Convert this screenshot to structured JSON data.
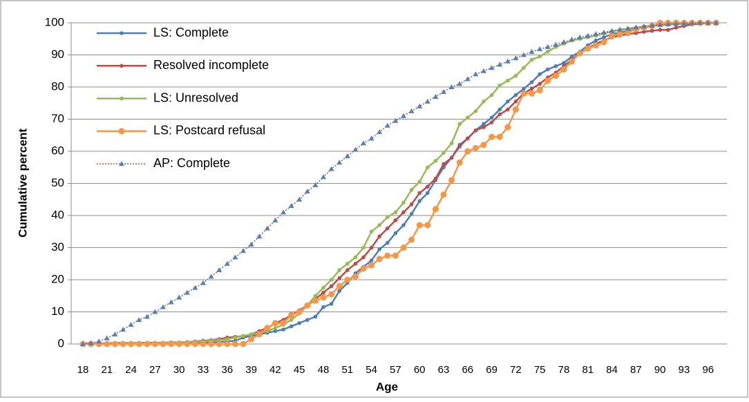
{
  "chart_data": {
    "type": "line",
    "x_label": "Age",
    "y_label": "Cumulative percent",
    "categories": [
      18,
      null,
      null,
      21,
      null,
      null,
      24,
      null,
      null,
      27,
      null,
      null,
      30,
      null,
      null,
      33,
      null,
      null,
      36,
      null,
      null,
      39,
      null,
      null,
      42,
      null,
      null,
      45,
      null,
      null,
      48,
      null,
      null,
      51,
      null,
      null,
      54,
      null,
      null,
      57,
      null,
      null,
      60,
      null,
      null,
      63,
      null,
      null,
      66,
      null,
      null,
      69,
      null,
      null,
      72,
      null,
      null,
      75,
      null,
      null,
      78,
      null,
      null,
      81,
      null,
      null,
      84,
      null,
      null,
      87,
      null,
      null,
      90,
      null,
      null,
      93,
      null,
      null,
      96,
      null
    ],
    "ylim": [
      0,
      100
    ],
    "yticks": [
      0,
      10,
      20,
      30,
      40,
      50,
      60,
      70,
      80,
      90,
      100
    ],
    "grid": true,
    "legend": "top-left",
    "series": [
      {
        "name": "LS: Complete",
        "color": "#4a7ebb",
        "marker": "circle",
        "line_style": "solid",
        "values": [
          0,
          0,
          0,
          0,
          0,
          0,
          0,
          0,
          0,
          0,
          0,
          0,
          0,
          0.2,
          0.3,
          0.4,
          0.5,
          0.6,
          0.8,
          1,
          2,
          2.5,
          3,
          3.5,
          4,
          4.5,
          5.5,
          6.5,
          7.5,
          8.5,
          11.5,
          12.5,
          16.5,
          19,
          22,
          24,
          26,
          29.5,
          31.5,
          34.5,
          37,
          40.5,
          44.5,
          47,
          51,
          55,
          58,
          62,
          64,
          66.5,
          68.5,
          70.5,
          73,
          75.5,
          77.5,
          79.5,
          81.5,
          84,
          85.5,
          86.5,
          87.5,
          89.5,
          91,
          93,
          94.5,
          95.5,
          96.5,
          97,
          97.5,
          98,
          98.5,
          99,
          99.2,
          99.4,
          99.6,
          99.7,
          99.8,
          99.9,
          100,
          100
        ]
      },
      {
        "name": "Resolved incomplete",
        "color": "#be4b48",
        "marker": "circle",
        "line_style": "solid",
        "values": [
          0.2,
          0.2,
          0.2,
          0.2,
          0.3,
          0.3,
          0.3,
          0.3,
          0.4,
          0.4,
          0.4,
          0.5,
          0.5,
          0.6,
          0.8,
          1,
          1.2,
          1.5,
          2,
          2.2,
          2.5,
          3,
          4,
          5,
          6.5,
          7.5,
          9,
          10.5,
          12,
          14,
          16,
          18,
          20.5,
          23,
          25,
          27,
          30,
          33.5,
          36,
          38.5,
          41,
          43.5,
          47,
          49,
          51.5,
          56,
          58,
          61.5,
          64,
          66.5,
          67.5,
          69,
          71.5,
          73,
          75.5,
          78,
          79.5,
          81,
          83,
          84.5,
          86.5,
          88.5,
          90.5,
          92,
          93.5,
          94.5,
          95.5,
          96,
          96.5,
          96.8,
          97.2,
          97.5,
          97.8,
          97.8,
          98.5,
          99,
          99.5,
          99.7,
          100,
          100
        ]
      },
      {
        "name": "LS: Unresolved",
        "color": "#98b954",
        "marker": "circle",
        "line_style": "solid",
        "values": [
          0,
          0,
          0,
          0,
          0,
          0.1,
          0.1,
          0.2,
          0.2,
          0.3,
          0.3,
          0.4,
          0.5,
          0.6,
          0.7,
          0.8,
          1,
          1.2,
          1.5,
          2,
          2.5,
          3,
          3.5,
          4,
          5,
          6,
          7.5,
          9.5,
          12,
          15,
          17.5,
          20,
          23,
          25,
          27,
          30,
          35,
          37,
          39.5,
          41,
          44,
          48,
          50.5,
          55,
          57,
          59.5,
          62.5,
          68.5,
          70.5,
          72.5,
          75.5,
          77.5,
          80.5,
          82,
          83.5,
          86,
          88.5,
          89.5,
          91,
          92.5,
          93.5,
          94.5,
          95,
          95.5,
          96,
          96.7,
          97.3,
          97.8,
          98.2,
          98.5,
          98.8,
          99,
          99.3,
          99.5,
          99.7,
          99.8,
          100,
          100,
          100,
          100
        ]
      },
      {
        "name": "LS: Postcard refusal",
        "color": "#f79646",
        "marker": "large-circle",
        "line_style": "solid",
        "values": [
          0,
          0,
          0,
          0,
          0,
          0,
          0,
          0,
          0,
          0,
          0,
          0,
          0,
          0,
          0,
          0,
          0,
          0,
          0,
          0,
          0,
          1.5,
          3,
          5,
          6.5,
          6.5,
          9,
          10,
          12,
          13.5,
          14.5,
          15.5,
          18,
          20,
          21,
          23.5,
          24.5,
          26.5,
          27.5,
          27.5,
          30,
          32.5,
          37,
          37,
          42,
          46.5,
          51,
          56.5,
          60,
          61,
          62,
          64.5,
          64.5,
          67.5,
          73,
          78,
          78,
          79,
          82,
          83.5,
          85.5,
          88,
          90.5,
          92,
          93,
          94,
          96,
          96.5,
          97,
          98,
          98.5,
          99,
          100,
          100,
          100,
          100,
          100,
          100,
          100,
          100
        ]
      },
      {
        "name": "AP: Complete",
        "color": "#4f81bd",
        "line_color": "#c0504d",
        "marker": "triangle",
        "line_style": "dotted",
        "values": [
          0,
          0.3,
          0.8,
          1.8,
          3,
          4.5,
          6,
          7.5,
          8.5,
          10,
          11.5,
          13,
          14.5,
          16,
          17.5,
          19,
          21,
          23,
          25,
          27,
          29,
          31,
          33.5,
          36,
          38.5,
          41,
          43,
          45,
          47.5,
          49.5,
          52,
          54.5,
          56.5,
          58.5,
          60.5,
          62.5,
          64,
          66,
          68,
          69.5,
          71,
          72.5,
          74,
          75.5,
          77,
          78.5,
          80,
          81,
          82.5,
          84,
          85,
          86,
          87,
          88,
          89,
          90,
          91,
          91.8,
          92.5,
          93.2,
          94,
          94.8,
          95.5,
          96,
          96.5,
          97,
          97.5,
          97.9,
          98.2,
          98.6,
          98.9,
          99.2,
          99.4,
          99.6,
          99.7,
          99.8,
          99.9,
          100,
          100,
          100
        ]
      }
    ]
  }
}
